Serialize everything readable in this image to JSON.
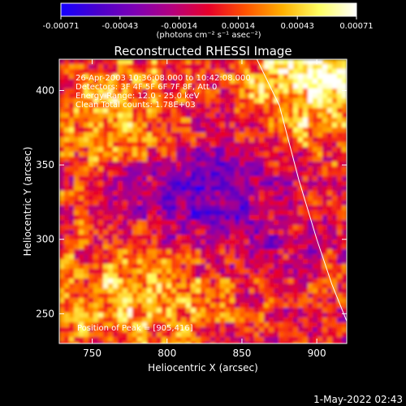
{
  "chart_data": {
    "type": "heatmap",
    "title": "Reconstructed RHESSI Image",
    "xlabel": "Heliocentric X (arcsec)",
    "ylabel": "Heliocentric Y (arcsec)",
    "xlim": [
      728,
      920
    ],
    "ylim": [
      230,
      421
    ],
    "x_ticks": [
      750,
      800,
      850,
      900
    ],
    "y_ticks": [
      250,
      300,
      350,
      400
    ],
    "colorbar": {
      "ticks": [
        "-0.00071",
        "-0.00043",
        "-0.00014",
        "0.00014",
        "0.00043",
        "0.00071"
      ],
      "unit_text": "(photons cm⁻² s⁻¹ asec⁻²)",
      "colors": [
        "#1500ff",
        "#4a00cc",
        "#7e00b5",
        "#b3007f",
        "#e8002a",
        "#ff5300",
        "#ffb000",
        "#ffff64",
        "#ffffff"
      ]
    },
    "info_lines": [
      "26-Apr-2003 10:36:08.000 to 10:42:08.000",
      "Detectors: 3F 4F 5F 6F 7F 8F, Att 0",
      "Energy Range: 12.0 - 25.0 keV",
      "Clean     Total counts: 1.78E+03"
    ],
    "peak_label": "Position of Peak = [905,416]",
    "peak_position": [
      905,
      416
    ],
    "limb_curve": [
      [
        860,
        421
      ],
      [
        875,
        390
      ],
      [
        888,
        340
      ],
      [
        900,
        300
      ],
      [
        910,
        270
      ],
      [
        920,
        245
      ]
    ],
    "intensity_regions": [
      {
        "x": 770,
        "y": 380,
        "level": 0.6
      },
      {
        "x": 900,
        "y": 410,
        "level": 1.0
      },
      {
        "x": 760,
        "y": 260,
        "level": 0.45
      },
      {
        "x": 800,
        "y": 330,
        "level": -0.5
      },
      {
        "x": 850,
        "y": 320,
        "level": -0.4
      },
      {
        "x": 810,
        "y": 265,
        "level": 0.35
      }
    ]
  },
  "timestamp": "1-May-2022 02:43"
}
